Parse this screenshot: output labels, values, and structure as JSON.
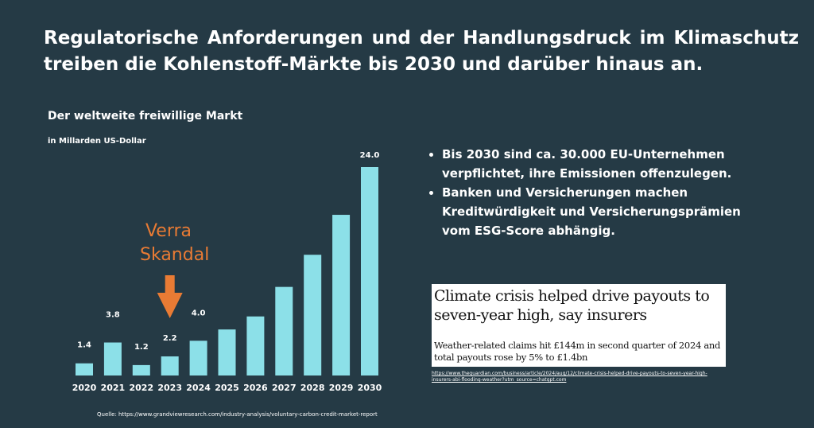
{
  "title": "Regulatorische Anforderungen und der Handlungsdruck im Klimaschutz treiben die Kohlenstoff-Märkte bis 2030 und darüber hinaus an.",
  "chart_data": {
    "type": "bar",
    "title": "Der weltweite freiwillige Markt",
    "subtitle": "in Millarden US-Dollar",
    "categories": [
      "2020",
      "2021",
      "2022",
      "2023",
      "2024",
      "2025",
      "2026",
      "2027",
      "2028",
      "2029",
      "2030"
    ],
    "values": [
      1.4,
      3.8,
      1.2,
      2.2,
      4.0,
      5.3,
      6.8,
      10.2,
      13.9,
      18.5,
      24.0
    ],
    "data_labels": [
      "1.4",
      "3.8",
      "1.2",
      "2.2",
      "4.0",
      "",
      "",
      "",
      "",
      "",
      "24.0"
    ],
    "ylim": [
      0,
      24
    ],
    "grid": false,
    "bar_color": "#8ce0e8",
    "annotation": {
      "line1": "Verra",
      "line2": "Skandal",
      "color": "#e97b34",
      "category": "2023",
      "icon": "arrow-down-icon"
    },
    "source": "Quelle: https://www.grandviewresearch.com/industry-analysis/voluntary-carbon-credit-market-report"
  },
  "bullets": [
    "Bis 2030 sind ca. 30.000 EU-Unternehmen verpflichtet, ihre Emissionen offenzulegen.",
    "Banken und Versicherungen machen Kreditwürdigkeit und Versicherungsprämien vom ESG-Score abhängig."
  ],
  "news": {
    "headline": "Climate crisis helped drive payouts to seven-year high, say insurers",
    "standfirst": "Weather-related claims hit £144m in second quarter of 2024 and total payouts rose by 5% to £1.4bn",
    "url": "https://www.theguardian.com/business/article/2024/aug/12/climate-crisis-helped-drive-payouts-to-seven-year-high-insurers-abi-flooding-weather?utm_source=chatgpt.com"
  }
}
